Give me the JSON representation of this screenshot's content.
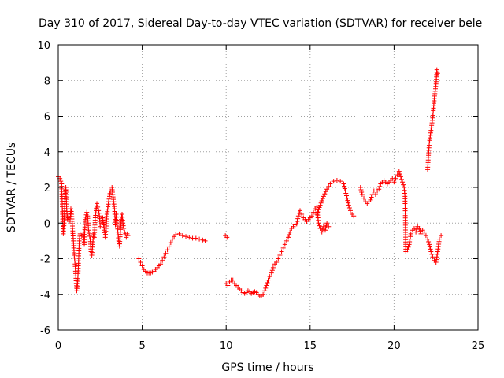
{
  "chart_data": {
    "type": "scatter",
    "title": "Day 310 of 2017, Sidereal Day-to-day VTEC variation (SDTVAR) for receiver bele",
    "xlabel": "GPS time / hours",
    "ylabel": "SDTVAR / TECUs",
    "xlim": [
      0,
      25
    ],
    "ylim": [
      -6,
      10
    ],
    "x_ticks": [
      "0",
      "5",
      "10",
      "15",
      "20",
      "25"
    ],
    "y_ticks": [
      "-6",
      "-4",
      "-2",
      "0",
      "2",
      "4",
      "6",
      "8",
      "10"
    ],
    "grid": true,
    "marker": "+",
    "series": [
      {
        "name": "SDTVAR",
        "color": "#ff0000",
        "points": [
          [
            0.0,
            2.6
          ],
          [
            0.1,
            2.5
          ],
          [
            0.2,
            2.2
          ],
          [
            0.25,
            0.5
          ],
          [
            0.3,
            -0.6
          ],
          [
            0.35,
            0.0
          ],
          [
            0.4,
            1.5
          ],
          [
            0.45,
            2.0
          ],
          [
            0.5,
            0.8
          ],
          [
            0.55,
            0.2
          ],
          [
            0.6,
            0.3
          ],
          [
            0.7,
            0.1
          ],
          [
            0.75,
            0.8
          ],
          [
            0.8,
            0.5
          ],
          [
            0.85,
            -0.3
          ],
          [
            0.9,
            -1.0
          ],
          [
            0.95,
            -1.8
          ],
          [
            1.0,
            -2.3
          ],
          [
            1.05,
            -3.1
          ],
          [
            1.1,
            -3.8
          ],
          [
            1.15,
            -3.4
          ],
          [
            1.2,
            -2.4
          ],
          [
            1.25,
            -1.0
          ],
          [
            1.3,
            -0.6
          ],
          [
            1.4,
            -0.7
          ],
          [
            1.5,
            -0.5
          ],
          [
            1.55,
            -1.2
          ],
          [
            1.6,
            0.2
          ],
          [
            1.7,
            0.6
          ],
          [
            1.75,
            0.4
          ],
          [
            1.8,
            -0.4
          ],
          [
            1.9,
            -0.9
          ],
          [
            1.95,
            -1.6
          ],
          [
            2.0,
            -1.8
          ],
          [
            2.05,
            -1.2
          ],
          [
            2.1,
            -0.6
          ],
          [
            2.15,
            -0.8
          ],
          [
            2.2,
            0.3
          ],
          [
            2.3,
            1.1
          ],
          [
            2.35,
            0.9
          ],
          [
            2.4,
            0.7
          ],
          [
            2.45,
            0.4
          ],
          [
            2.5,
            -0.2
          ],
          [
            2.6,
            0.0
          ],
          [
            2.65,
            0.3
          ],
          [
            2.7,
            -0.1
          ],
          [
            2.75,
            -0.4
          ],
          [
            2.8,
            -0.8
          ],
          [
            2.85,
            -0.3
          ],
          [
            2.9,
            0.5
          ],
          [
            3.0,
            1.2
          ],
          [
            3.1,
            1.8
          ],
          [
            3.2,
            2.0
          ],
          [
            3.25,
            1.6
          ],
          [
            3.3,
            1.2
          ],
          [
            3.35,
            0.8
          ],
          [
            3.4,
            -0.1
          ],
          [
            3.45,
            0.5
          ],
          [
            3.5,
            0.0
          ],
          [
            3.55,
            -0.5
          ],
          [
            3.6,
            -1.0
          ],
          [
            3.65,
            -1.3
          ],
          [
            3.7,
            -0.5
          ],
          [
            3.75,
            0.2
          ],
          [
            3.8,
            0.5
          ],
          [
            3.85,
            0.0
          ],
          [
            3.9,
            -0.3
          ],
          [
            3.95,
            -0.5
          ],
          [
            4.0,
            -0.6
          ],
          [
            4.05,
            -0.8
          ],
          [
            4.1,
            -0.6
          ],
          [
            4.15,
            -0.7
          ],
          [
            4.8,
            -2.0
          ],
          [
            4.9,
            -2.2
          ],
          [
            5.0,
            -2.4
          ],
          [
            5.1,
            -2.6
          ],
          [
            5.2,
            -2.7
          ],
          [
            5.3,
            -2.8
          ],
          [
            5.4,
            -2.8
          ],
          [
            5.5,
            -2.8
          ],
          [
            5.6,
            -2.75
          ],
          [
            5.7,
            -2.7
          ],
          [
            5.8,
            -2.6
          ],
          [
            5.9,
            -2.5
          ],
          [
            6.0,
            -2.4
          ],
          [
            6.1,
            -2.3
          ],
          [
            6.2,
            -2.1
          ],
          [
            6.3,
            -1.9
          ],
          [
            6.4,
            -1.7
          ],
          [
            6.5,
            -1.5
          ],
          [
            6.6,
            -1.3
          ],
          [
            6.7,
            -1.1
          ],
          [
            6.8,
            -0.9
          ],
          [
            6.9,
            -0.75
          ],
          [
            7.0,
            -0.65
          ],
          [
            7.2,
            -0.6
          ],
          [
            7.4,
            -0.7
          ],
          [
            7.6,
            -0.75
          ],
          [
            7.8,
            -0.8
          ],
          [
            8.0,
            -0.85
          ],
          [
            8.2,
            -0.85
          ],
          [
            8.4,
            -0.9
          ],
          [
            8.6,
            -0.95
          ],
          [
            8.75,
            -1.0
          ],
          [
            9.95,
            -0.7
          ],
          [
            10.05,
            -0.8
          ],
          [
            10.0,
            -3.4
          ],
          [
            10.1,
            -3.5
          ],
          [
            10.2,
            -3.3
          ],
          [
            10.3,
            -3.2
          ],
          [
            10.4,
            -3.2
          ],
          [
            10.5,
            -3.4
          ],
          [
            10.6,
            -3.5
          ],
          [
            10.7,
            -3.6
          ],
          [
            10.8,
            -3.7
          ],
          [
            10.9,
            -3.8
          ],
          [
            11.0,
            -3.9
          ],
          [
            11.1,
            -3.95
          ],
          [
            11.2,
            -3.9
          ],
          [
            11.3,
            -3.8
          ],
          [
            11.4,
            -3.85
          ],
          [
            11.5,
            -3.95
          ],
          [
            11.6,
            -3.9
          ],
          [
            11.7,
            -3.85
          ],
          [
            11.8,
            -3.9
          ],
          [
            11.9,
            -4.0
          ],
          [
            12.0,
            -4.1
          ],
          [
            12.1,
            -4.1
          ],
          [
            12.2,
            -4.0
          ],
          [
            12.3,
            -3.8
          ],
          [
            12.4,
            -3.5
          ],
          [
            12.5,
            -3.2
          ],
          [
            12.6,
            -3.0
          ],
          [
            12.7,
            -2.8
          ],
          [
            12.8,
            -2.5
          ],
          [
            12.9,
            -2.3
          ],
          [
            13.0,
            -2.2
          ],
          [
            13.1,
            -2.0
          ],
          [
            13.2,
            -1.8
          ],
          [
            13.3,
            -1.6
          ],
          [
            13.4,
            -1.4
          ],
          [
            13.5,
            -1.2
          ],
          [
            13.6,
            -1.0
          ],
          [
            13.7,
            -0.8
          ],
          [
            13.8,
            -0.5
          ],
          [
            13.9,
            -0.3
          ],
          [
            14.0,
            -0.2
          ],
          [
            14.1,
            -0.1
          ],
          [
            14.2,
            -0.05
          ],
          [
            14.3,
            0.4
          ],
          [
            14.4,
            0.7
          ],
          [
            14.5,
            0.5
          ],
          [
            14.6,
            0.3
          ],
          [
            14.7,
            0.2
          ],
          [
            14.8,
            0.1
          ],
          [
            14.9,
            0.2
          ],
          [
            15.0,
            0.3
          ],
          [
            15.1,
            0.4
          ],
          [
            15.2,
            0.6
          ],
          [
            15.3,
            0.8
          ],
          [
            15.4,
            0.9
          ],
          [
            15.5,
            0.0
          ],
          [
            15.6,
            -0.3
          ],
          [
            15.7,
            -0.5
          ],
          [
            15.8,
            -0.2
          ],
          [
            15.9,
            -0.4
          ],
          [
            16.0,
            0.0
          ],
          [
            16.1,
            -0.2
          ],
          [
            15.4,
            0.5
          ],
          [
            15.6,
            1.0
          ],
          [
            15.8,
            1.5
          ],
          [
            16.0,
            1.9
          ],
          [
            16.2,
            2.2
          ],
          [
            16.4,
            2.35
          ],
          [
            16.6,
            2.4
          ],
          [
            16.8,
            2.35
          ],
          [
            17.0,
            2.2
          ],
          [
            17.1,
            1.8
          ],
          [
            17.2,
            1.4
          ],
          [
            17.3,
            1.0
          ],
          [
            17.4,
            0.7
          ],
          [
            17.5,
            0.5
          ],
          [
            17.6,
            0.4
          ],
          [
            18.0,
            2.0
          ],
          [
            18.1,
            1.6
          ],
          [
            18.2,
            1.4
          ],
          [
            18.3,
            1.2
          ],
          [
            18.4,
            1.1
          ],
          [
            18.6,
            1.3
          ],
          [
            18.7,
            1.6
          ],
          [
            18.8,
            1.8
          ],
          [
            18.9,
            1.6
          ],
          [
            19.0,
            1.8
          ],
          [
            19.1,
            1.9
          ],
          [
            19.2,
            2.2
          ],
          [
            19.3,
            2.3
          ],
          [
            19.4,
            2.4
          ],
          [
            19.5,
            2.3
          ],
          [
            19.6,
            2.2
          ],
          [
            19.7,
            2.3
          ],
          [
            19.8,
            2.4
          ],
          [
            19.9,
            2.5
          ],
          [
            20.0,
            2.3
          ],
          [
            20.1,
            2.5
          ],
          [
            20.2,
            2.7
          ],
          [
            20.3,
            2.9
          ],
          [
            20.4,
            2.6
          ],
          [
            20.5,
            2.3
          ],
          [
            20.6,
            2.0
          ],
          [
            20.65,
            1.5
          ],
          [
            20.7,
            -1.6
          ],
          [
            20.8,
            -1.5
          ],
          [
            20.9,
            -1.2
          ],
          [
            21.0,
            -0.6
          ],
          [
            21.1,
            -0.4
          ],
          [
            21.2,
            -0.3
          ],
          [
            21.3,
            -0.5
          ],
          [
            21.4,
            -0.2
          ],
          [
            21.5,
            -0.3
          ],
          [
            21.6,
            -0.6
          ],
          [
            21.7,
            -0.4
          ],
          [
            21.8,
            -0.5
          ],
          [
            21.9,
            -0.7
          ],
          [
            22.0,
            -0.9
          ],
          [
            22.1,
            -1.2
          ],
          [
            22.2,
            -1.6
          ],
          [
            22.3,
            -1.9
          ],
          [
            22.4,
            -2.1
          ],
          [
            22.5,
            -2.2
          ],
          [
            22.6,
            -1.6
          ],
          [
            22.7,
            -0.9
          ],
          [
            22.8,
            -0.7
          ],
          [
            22.0,
            3.0
          ],
          [
            22.05,
            3.8
          ],
          [
            22.1,
            4.5
          ],
          [
            22.2,
            5.2
          ],
          [
            22.3,
            5.9
          ],
          [
            22.4,
            7.0
          ],
          [
            22.5,
            7.8
          ],
          [
            22.55,
            8.6
          ],
          [
            22.6,
            8.4
          ]
        ]
      }
    ]
  }
}
